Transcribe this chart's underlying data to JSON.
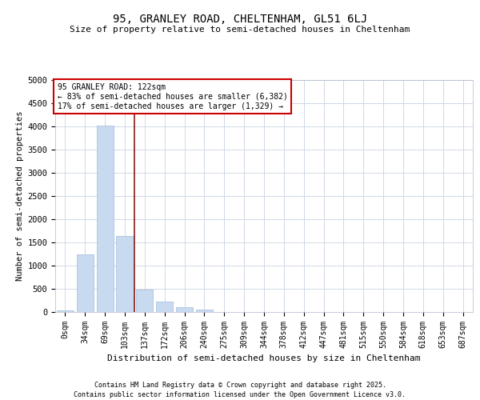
{
  "title1": "95, GRANLEY ROAD, CHELTENHAM, GL51 6LJ",
  "title2": "Size of property relative to semi-detached houses in Cheltenham",
  "xlabel": "Distribution of semi-detached houses by size in Cheltenham",
  "ylabel": "Number of semi-detached properties",
  "categories": [
    "0sqm",
    "34sqm",
    "69sqm",
    "103sqm",
    "137sqm",
    "172sqm",
    "206sqm",
    "240sqm",
    "275sqm",
    "309sqm",
    "344sqm",
    "378sqm",
    "412sqm",
    "447sqm",
    "481sqm",
    "515sqm",
    "550sqm",
    "584sqm",
    "618sqm",
    "653sqm",
    "687sqm"
  ],
  "values": [
    30,
    1250,
    4020,
    1640,
    480,
    220,
    110,
    50,
    0,
    0,
    0,
    0,
    0,
    0,
    0,
    0,
    0,
    0,
    0,
    0,
    0
  ],
  "bar_color": "#c8daf0",
  "bar_edgecolor": "#a0bcd8",
  "vline_index": 3,
  "vline_color": "#8b1a1a",
  "annotation_title": "95 GRANLEY ROAD: 122sqm",
  "annotation_line1": "← 83% of semi-detached houses are smaller (6,382)",
  "annotation_line2": "17% of semi-detached houses are larger (1,329) →",
  "ylim": [
    0,
    5000
  ],
  "yticks": [
    0,
    500,
    1000,
    1500,
    2000,
    2500,
    3000,
    3500,
    4000,
    4500,
    5000
  ],
  "footer1": "Contains HM Land Registry data © Crown copyright and database right 2025.",
  "footer2": "Contains public sector information licensed under the Open Government Licence v3.0.",
  "bg_color": "#ffffff",
  "plot_bg_color": "#ffffff",
  "grid_color": "#d0d8e8"
}
